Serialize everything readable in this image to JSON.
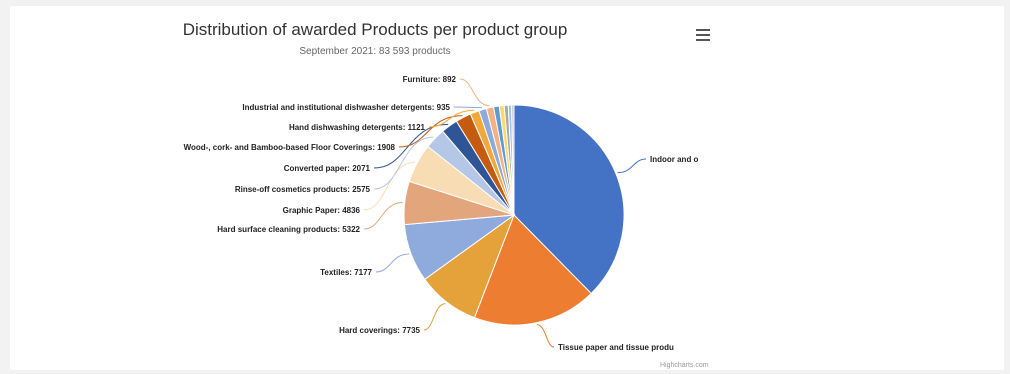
{
  "chart_data": {
    "type": "pie",
    "title": "Distribution of awarded Products per product group",
    "subtitle": "September 2021: 83 593 products",
    "slices": [
      {
        "label": "Indoor and o",
        "value": 31600,
        "color": "#4472c4"
      },
      {
        "label": "Tissue paper and tissue produ",
        "value": 15300,
        "color": "#ed7d31"
      },
      {
        "label": "Hard coverings: 7735",
        "value": 7735,
        "color": "#e5a23a"
      },
      {
        "label": "Textiles: 7177",
        "value": 7177,
        "color": "#8faadc"
      },
      {
        "label": "Hard surface cleaning products: 5322",
        "value": 5322,
        "color": "#e2a57c"
      },
      {
        "label": "Graphic Paper: 4836",
        "value": 4836,
        "color": "#f7dcb4"
      },
      {
        "label": "Rinse-off cosmetics products: 2575",
        "value": 2575,
        "color": "#b4c7e7"
      },
      {
        "label": "Converted paper: 2071",
        "value": 2071,
        "color": "#2f5597"
      },
      {
        "label": "Wood-, cork- and Bamboo-based Floor Coverings: 1908",
        "value": 1908,
        "color": "#c55a11"
      },
      {
        "label": "Hand dishwashing detergents: 1121",
        "value": 1121,
        "color": "#f2a93b"
      },
      {
        "label": "Industrial and institutional dishwasher detergents: 935",
        "value": 935,
        "color": "#8eaadb"
      },
      {
        "label": "Furniture: 892",
        "value": 892,
        "color": "#f4b183"
      },
      {
        "label": "",
        "value": 700,
        "color": "#5b9bd5"
      },
      {
        "label": "",
        "value": 600,
        "color": "#ffd966"
      },
      {
        "label": "",
        "value": 500,
        "color": "#a9a9a9"
      },
      {
        "label": "",
        "value": 400,
        "color": "#9dc3e6"
      },
      {
        "label": "",
        "value": 300,
        "color": "#c9c9c9"
      }
    ]
  },
  "menu": {
    "icon": "hamburger-menu-icon"
  },
  "credits": "Highcharts.com"
}
